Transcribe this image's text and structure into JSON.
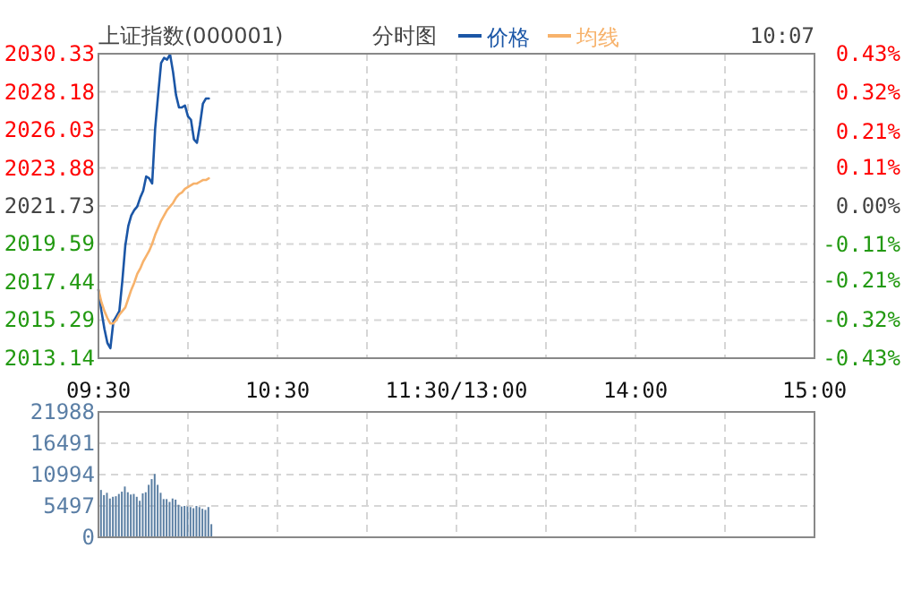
{
  "chart_data": [
    {
      "type": "line",
      "title": "上证指数(000001)",
      "subtitle": "分时图",
      "annotations": [
        "10:07"
      ],
      "legend": "top",
      "grid": true,
      "categories": [
        "09:30",
        null,
        null,
        null,
        null,
        null,
        null,
        null,
        null,
        null,
        null,
        null,
        null,
        null,
        null,
        null,
        null,
        null,
        null,
        null,
        null,
        null,
        null,
        null,
        null,
        null,
        null,
        null,
        null,
        null,
        null,
        null,
        null,
        null,
        null,
        null,
        null,
        null,
        null,
        null,
        null,
        null,
        null,
        null,
        null,
        null,
        null,
        null,
        null,
        null,
        null,
        null,
        null,
        null,
        null,
        null,
        null,
        null,
        null,
        null,
        "10:30",
        null,
        null,
        null,
        null,
        null,
        null,
        null,
        null,
        null,
        null,
        null,
        null,
        null,
        null,
        null,
        null,
        null,
        null,
        null,
        null,
        null,
        null,
        null,
        null,
        null,
        null,
        null,
        null,
        null,
        null,
        null,
        null,
        null,
        null,
        null,
        null,
        null,
        null,
        null,
        null,
        null,
        null,
        null,
        null,
        null,
        null,
        null,
        null,
        null,
        null,
        null,
        null,
        null,
        null,
        null,
        null,
        null,
        null,
        null,
        "11:30/13:00",
        null,
        null,
        null,
        null,
        null,
        null,
        null,
        null,
        null,
        null,
        null,
        null,
        null,
        null,
        null,
        null,
        null,
        null,
        null,
        null,
        null,
        null,
        null,
        null,
        null,
        null,
        null,
        null,
        null,
        null,
        null,
        null,
        null,
        null,
        null,
        null,
        null,
        null,
        null,
        null,
        null,
        null,
        null,
        null,
        null,
        null,
        null,
        null,
        null,
        null,
        null,
        null,
        null,
        null,
        null,
        null,
        null,
        null,
        null,
        "14:00",
        null,
        null,
        null,
        null,
        null,
        null,
        null,
        null,
        null,
        null,
        null,
        null,
        null,
        null,
        null,
        null,
        null,
        null,
        null,
        null,
        null,
        null,
        null,
        null,
        null,
        null,
        null,
        null,
        null,
        null,
        null,
        null,
        null,
        null,
        null,
        null,
        null,
        null,
        null,
        null,
        null,
        null,
        null,
        null,
        null,
        null,
        null,
        null,
        null,
        null,
        null,
        null,
        null,
        null,
        null,
        null,
        null,
        null,
        null,
        "15:00"
      ],
      "ylim": [
        2013.14,
        2030.33
      ],
      "yticks": [
        2013.14,
        2015.29,
        2017.44,
        2019.59,
        2021.73,
        2023.88,
        2026.03,
        2028.18,
        2030.33
      ],
      "y2lim": [
        -0.43,
        0.43
      ],
      "y2ticks": [
        {
          "value": -0.43,
          "label": "-0.43%"
        },
        {
          "value": -0.32,
          "label": "-0.32%"
        },
        {
          "value": -0.21,
          "label": "-0.21%"
        },
        {
          "value": -0.11,
          "label": "-0.11%"
        },
        {
          "value": 0,
          "label": "0.00%"
        },
        {
          "value": 0.11,
          "label": "0.11%"
        },
        {
          "value": 0.21,
          "label": "0.21%"
        },
        {
          "value": 0.32,
          "label": "0.32%"
        },
        {
          "value": 0.43,
          "label": "0.43%"
        }
      ],
      "series": [
        {
          "name": "价格",
          "color": "#1b56a6",
          "values": [
            2017.0,
            2015.8,
            2014.8,
            2014.0,
            2013.7,
            2015.2,
            2015.5,
            2015.8,
            2017.5,
            2019.5,
            2020.6,
            2021.2,
            2021.5,
            2021.7,
            2022.2,
            2022.6,
            2023.4,
            2023.3,
            2023.0,
            2026.1,
            2028.0,
            2029.8,
            2030.1,
            2030.0,
            2030.3,
            2029.3,
            2028.0,
            2027.3,
            2027.3,
            2027.4,
            2026.8,
            2026.6,
            2025.5,
            2025.3,
            2026.3,
            2027.5,
            2027.8,
            2027.8,
            null,
            null,
            null,
            null,
            null,
            null,
            null,
            null,
            null,
            null,
            null,
            null,
            null,
            null,
            null,
            null,
            null,
            null,
            null,
            null,
            null,
            null,
            null,
            null,
            null,
            null,
            null,
            null,
            null,
            null,
            null,
            null,
            null,
            null,
            null,
            null,
            null,
            null,
            null,
            null,
            null,
            null,
            null,
            null,
            null,
            null,
            null,
            null,
            null,
            null,
            null,
            null,
            null,
            null,
            null,
            null,
            null,
            null,
            null,
            null,
            null,
            null,
            null,
            null,
            null,
            null,
            null,
            null,
            null,
            null,
            null,
            null,
            null,
            null,
            null,
            null,
            null,
            null,
            null,
            null,
            null,
            null,
            null,
            null,
            null,
            null,
            null,
            null,
            null,
            null,
            null,
            null,
            null,
            null,
            null,
            null,
            null,
            null,
            null,
            null,
            null,
            null,
            null,
            null,
            null,
            null,
            null,
            null,
            null,
            null,
            null,
            null,
            null,
            null,
            null,
            null,
            null,
            null,
            null,
            null,
            null,
            null,
            null,
            null,
            null,
            null,
            null,
            null,
            null,
            null,
            null,
            null,
            null,
            null,
            null,
            null,
            null,
            null,
            null,
            null,
            null,
            null,
            null,
            null,
            null,
            null,
            null,
            null,
            null,
            null,
            null,
            null,
            null,
            null,
            null,
            null,
            null,
            null,
            null,
            null,
            null,
            null,
            null,
            null,
            null,
            null,
            null,
            null,
            null,
            null,
            null,
            null,
            null,
            null,
            null,
            null,
            null,
            null,
            null,
            null,
            null,
            null,
            null,
            null,
            null,
            null,
            null,
            null,
            null,
            null,
            null,
            null,
            null,
            null,
            null,
            null,
            null,
            null,
            null,
            null,
            null,
            null,
            null
          ]
        },
        {
          "name": "均线",
          "color": "#f7b26b",
          "values": [
            2017.0,
            2016.3,
            2015.8,
            2015.4,
            2015.1,
            2015.1,
            2015.3,
            2015.6,
            2015.8,
            2016.0,
            2016.5,
            2017.0,
            2017.4,
            2017.9,
            2018.2,
            2018.6,
            2018.9,
            2019.2,
            2019.6,
            2020.1,
            2020.5,
            2020.9,
            2021.2,
            2021.5,
            2021.7,
            2021.9,
            2022.2,
            2022.4,
            2022.5,
            2022.7,
            2022.8,
            2022.9,
            2023.0,
            2023.0,
            2023.1,
            2023.2,
            2023.2,
            2023.3,
            null,
            null,
            null,
            null,
            null,
            null,
            null,
            null,
            null,
            null,
            null,
            null,
            null,
            null,
            null,
            null,
            null,
            null,
            null,
            null,
            null,
            null,
            null,
            null,
            null,
            null,
            null,
            null,
            null,
            null,
            null,
            null,
            null,
            null,
            null,
            null,
            null,
            null,
            null,
            null,
            null,
            null,
            null,
            null,
            null,
            null,
            null,
            null,
            null,
            null,
            null,
            null,
            null,
            null,
            null,
            null,
            null,
            null,
            null,
            null,
            null,
            null,
            null,
            null,
            null,
            null,
            null,
            null,
            null,
            null,
            null,
            null,
            null,
            null,
            null,
            null,
            null,
            null,
            null,
            null,
            null,
            null,
            null,
            null,
            null,
            null,
            null,
            null,
            null,
            null,
            null,
            null,
            null,
            null,
            null,
            null,
            null,
            null,
            null,
            null,
            null,
            null,
            null,
            null,
            null,
            null,
            null,
            null,
            null,
            null,
            null,
            null,
            null,
            null,
            null,
            null,
            null,
            null,
            null,
            null,
            null,
            null,
            null,
            null,
            null,
            null,
            null,
            null,
            null,
            null,
            null,
            null,
            null,
            null,
            null,
            null,
            null,
            null,
            null,
            null,
            null,
            null,
            null,
            null,
            null,
            null,
            null,
            null,
            null,
            null,
            null,
            null,
            null,
            null,
            null,
            null,
            null,
            null,
            null,
            null,
            null,
            null,
            null,
            null,
            null,
            null,
            null,
            null,
            null,
            null,
            null,
            null,
            null,
            null,
            null,
            null,
            null,
            null,
            null,
            null,
            null,
            null,
            null,
            null,
            null,
            null,
            null,
            null,
            null,
            null,
            null,
            null,
            null,
            null,
            null,
            null,
            null,
            null,
            null,
            null,
            null,
            null,
            null
          ]
        }
      ]
    },
    {
      "type": "bar",
      "grid": true,
      "tick_labels": "y",
      "categories": [
        null,
        null,
        null,
        null,
        null,
        null,
        null,
        null,
        null,
        null,
        null,
        null,
        null,
        null,
        null,
        null,
        null,
        null,
        null,
        null,
        null,
        null,
        null,
        null,
        null,
        null,
        null,
        null,
        null,
        null,
        null,
        null,
        null,
        null,
        null,
        null,
        null,
        null,
        null,
        null,
        null,
        null,
        null,
        null,
        null,
        null,
        null,
        null,
        null,
        null,
        null,
        null,
        null,
        null,
        null,
        null,
        null,
        null,
        null,
        null,
        null,
        null,
        null,
        null,
        null,
        null,
        null,
        null,
        null,
        null,
        null,
        null,
        null,
        null,
        null,
        null,
        null,
        null,
        null,
        null,
        null,
        null,
        null,
        null,
        null,
        null,
        null,
        null,
        null,
        null,
        null,
        null,
        null,
        null,
        null,
        null,
        null,
        null,
        null,
        null,
        null,
        null,
        null,
        null,
        null,
        null,
        null,
        null,
        null,
        null,
        null,
        null,
        null,
        null,
        null,
        null,
        null,
        null,
        null,
        null,
        null,
        null,
        null,
        null,
        null,
        null,
        null,
        null,
        null,
        null,
        null,
        null,
        null,
        null,
        null,
        null,
        null,
        null,
        null,
        null,
        null,
        null,
        null,
        null,
        null,
        null,
        null,
        null,
        null,
        null,
        null,
        null,
        null,
        null,
        null,
        null,
        null,
        null,
        null,
        null,
        null,
        null,
        null,
        null,
        null,
        null,
        null,
        null,
        null,
        null,
        null,
        null,
        null,
        null,
        null,
        null,
        null,
        null,
        null,
        null,
        null,
        null,
        null,
        null,
        null,
        null,
        null,
        null,
        null,
        null,
        null,
        null,
        null,
        null,
        null,
        null,
        null,
        null,
        null,
        null,
        null,
        null,
        null,
        null,
        null,
        null,
        null,
        null,
        null,
        null,
        null,
        null,
        null,
        null,
        null,
        null,
        null,
        null,
        null,
        null,
        null,
        null,
        null,
        null,
        null,
        null,
        null,
        null,
        null,
        null,
        null,
        null,
        null,
        null,
        null,
        null,
        null,
        null,
        null,
        null,
        null
      ],
      "ylim": [
        0,
        21988
      ],
      "yticks": [
        0,
        5497,
        10994,
        16491,
        21988
      ],
      "series": [
        {
          "color": "#5b7fa3",
          "values": [
            8300,
            7400,
            7800,
            6800,
            7100,
            7200,
            7600,
            8000,
            8900,
            7900,
            7500,
            7600,
            7100,
            6400,
            7700,
            7900,
            9200,
            10200,
            11100,
            9200,
            7800,
            6700,
            6700,
            6200,
            6800,
            6600,
            5700,
            5400,
            5500,
            5400,
            5300,
            5100,
            5500,
            5300,
            5000,
            4800,
            5300,
            2300,
            null,
            null,
            null,
            null,
            null,
            null,
            null,
            null,
            null,
            null,
            null,
            null,
            null,
            null,
            null,
            null,
            null,
            null,
            null,
            null,
            null,
            null,
            null,
            null,
            null,
            null,
            null,
            null,
            null,
            null,
            null,
            null,
            null,
            null,
            null,
            null,
            null,
            null,
            null,
            null,
            null,
            null,
            null,
            null,
            null,
            null,
            null,
            null,
            null,
            null,
            null,
            null,
            null,
            null,
            null,
            null,
            null,
            null,
            null,
            null,
            null,
            null,
            null,
            null,
            null,
            null,
            null,
            null,
            null,
            null,
            null,
            null,
            null,
            null,
            null,
            null,
            null,
            null,
            null,
            null,
            null,
            null,
            null,
            null,
            null,
            null,
            null,
            null,
            null,
            null,
            null,
            null,
            null,
            null,
            null,
            null,
            null,
            null,
            null,
            null,
            null,
            null,
            null,
            null,
            null,
            null,
            null,
            null,
            null,
            null,
            null,
            null,
            null,
            null,
            null,
            null,
            null,
            null,
            null,
            null,
            null,
            null,
            null,
            null,
            null,
            null,
            null,
            null,
            null,
            null,
            null,
            null,
            null,
            null,
            null,
            null,
            null,
            null,
            null,
            null,
            null,
            null,
            null,
            null,
            null,
            null,
            null,
            null,
            null,
            null,
            null,
            null,
            null,
            null,
            null,
            null,
            null,
            null,
            null,
            null,
            null,
            null,
            null,
            null,
            null,
            null,
            null,
            null,
            null,
            null,
            null,
            null,
            null,
            null,
            null,
            null,
            null,
            null,
            null,
            null,
            null,
            null,
            null,
            null,
            null,
            null,
            null,
            null,
            null,
            null,
            null,
            null,
            null,
            null,
            null,
            null,
            null,
            null,
            null,
            null,
            null,
            null,
            null
          ]
        }
      ]
    }
  ]
}
